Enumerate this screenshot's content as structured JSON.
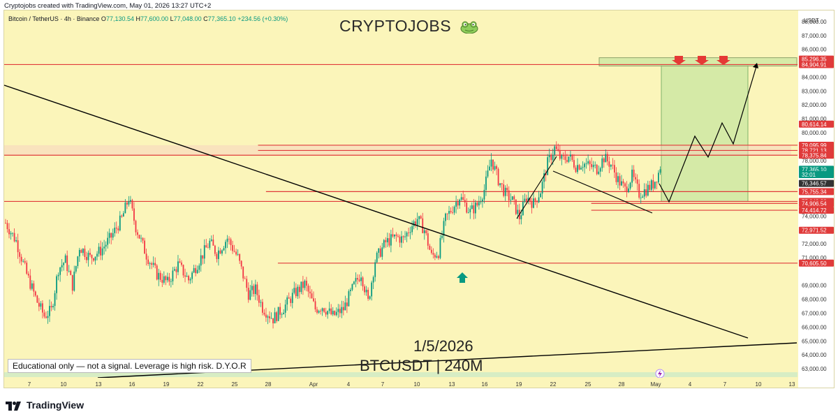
{
  "attribution": "Cryptojobs created with TradingView.com, May 01, 2026 13:27 UTC+2",
  "legend": {
    "symbol": "Bitcoin / TetherUS · 4h · Binance",
    "o_label": "O",
    "o": "77,130.54",
    "h_label": "H",
    "h": "77,600.00",
    "l_label": "L",
    "l": "77,048.00",
    "c_label": "C",
    "c": "77,365.10",
    "change": "+234.56 (+0.30%)"
  },
  "watermark": "CRYPTOJOBS",
  "disclaimer": "Educational only — not a signal. Leverage is high risk. D.Y.O.R",
  "date_note": "1/5/2026",
  "symbol_note": "BTCUSDT | 240M",
  "brand": "TradingView",
  "currency": "USDT",
  "colors": {
    "background": "#fbf5ba",
    "up": "#089981",
    "down": "#f23645",
    "level": "#e03a3a",
    "zone": "#c8e6a0",
    "trendline": "#000000",
    "current": "#089981"
  },
  "icons": [
    "frog-icon",
    "arrow-down-icon",
    "arrow-up-icon",
    "lightning-icon",
    "tradingview-logo-icon"
  ],
  "chart_data": {
    "type": "candlestick",
    "interval": "4h",
    "ylim": [
      62800,
      88800
    ],
    "y_ticks": [
      "88,000.00",
      "87,000.00",
      "86,000.00",
      "84,000.00",
      "83,000.00",
      "82,000.00",
      "81,000.00",
      "80,000.00",
      "78,000.00",
      "77,000.00",
      "74,000.00",
      "73,000.00",
      "72,000.00",
      "71,000.00",
      "69,000.00",
      "68,000.00",
      "67,000.00",
      "66,000.00",
      "65,000.00",
      "64,000.00",
      "63,000.00"
    ],
    "y_tick_values": [
      88000,
      87000,
      86000,
      84000,
      83000,
      82000,
      81000,
      80000,
      78000,
      77000,
      74000,
      73000,
      72000,
      71000,
      69000,
      68000,
      67000,
      66000,
      65000,
      64000,
      63000
    ],
    "x_ticks": [
      "7",
      "10",
      "13",
      "16",
      "19",
      "22",
      "25",
      "28",
      "Apr",
      "4",
      "7",
      "10",
      "13",
      "16",
      "19",
      "22",
      "25",
      "28",
      "May",
      "4",
      "7",
      "10",
      "13"
    ],
    "price_labels": [
      {
        "text": "85,296.35",
        "value": 85296.35,
        "kind": "level"
      },
      {
        "text": "84,904.91",
        "value": 84904.91,
        "kind": "level"
      },
      {
        "text": "80,614.14",
        "value": 80614.14,
        "kind": "level"
      },
      {
        "text": "79,095.99",
        "value": 79095.99,
        "kind": "level"
      },
      {
        "text": "78,721.13",
        "value": 78721.13,
        "kind": "level"
      },
      {
        "text": "78,375.84",
        "value": 78375.84,
        "kind": "level"
      },
      {
        "text": "77,365.10",
        "value": 77365.1,
        "kind": "current"
      },
      {
        "text": "32:01",
        "value": 76980,
        "kind": "timer"
      },
      {
        "text": "76,346.57",
        "value": 76346.57,
        "kind": "dark"
      },
      {
        "text": "75,755.34",
        "value": 75755.34,
        "kind": "level"
      },
      {
        "text": "75,049.82",
        "value": 75049.82,
        "kind": "level"
      },
      {
        "text": "74,906.54",
        "value": 74906.54,
        "kind": "level"
      },
      {
        "text": "74,414.72",
        "value": 74414.72,
        "kind": "level"
      },
      {
        "text": "72,971.52",
        "value": 72971.52,
        "kind": "level"
      },
      {
        "text": "70,605.50",
        "value": 70605.5,
        "kind": "level"
      }
    ],
    "levels": [
      {
        "value": 84904.91,
        "x_start": 0.0
      },
      {
        "value": 79095.99,
        "x_start": 0.32
      },
      {
        "value": 78721.13,
        "x_start": 0.32
      },
      {
        "value": 78375.84,
        "x_start": 0.0
      },
      {
        "value": 75755.34,
        "x_start": 0.33
      },
      {
        "value": 75049.82,
        "x_start": 0.0
      },
      {
        "value": 74906.54,
        "x_start": 0.74
      },
      {
        "value": 74414.72,
        "x_start": 0.74
      },
      {
        "value": 70605.5,
        "x_start": 0.345
      }
    ],
    "target_zone": {
      "top": 84904.91,
      "bottom": 75049.82
    },
    "anchors": [
      {
        "i": 0,
        "v": 73500
      },
      {
        "i": 6,
        "v": 72200
      },
      {
        "i": 12,
        "v": 69800
      },
      {
        "i": 18,
        "v": 67800
      },
      {
        "i": 22,
        "v": 66800
      },
      {
        "i": 26,
        "v": 67200
      },
      {
        "i": 30,
        "v": 70200
      },
      {
        "i": 34,
        "v": 70800
      },
      {
        "i": 38,
        "v": 69000
      },
      {
        "i": 42,
        "v": 71800
      },
      {
        "i": 48,
        "v": 71000
      },
      {
        "i": 54,
        "v": 71500
      },
      {
        "i": 60,
        "v": 72500
      },
      {
        "i": 66,
        "v": 73800
      },
      {
        "i": 70,
        "v": 75300
      },
      {
        "i": 74,
        "v": 73200
      },
      {
        "i": 80,
        "v": 71200
      },
      {
        "i": 86,
        "v": 69800
      },
      {
        "i": 92,
        "v": 69200
      },
      {
        "i": 98,
        "v": 70500
      },
      {
        "i": 104,
        "v": 69400
      },
      {
        "i": 110,
        "v": 70800
      },
      {
        "i": 116,
        "v": 72100
      },
      {
        "i": 120,
        "v": 71300
      },
      {
        "i": 126,
        "v": 72400
      },
      {
        "i": 132,
        "v": 71000
      },
      {
        "i": 138,
        "v": 68400
      },
      {
        "i": 142,
        "v": 68700
      },
      {
        "i": 146,
        "v": 67400
      },
      {
        "i": 152,
        "v": 66600
      },
      {
        "i": 158,
        "v": 67400
      },
      {
        "i": 164,
        "v": 68400
      },
      {
        "i": 170,
        "v": 69100
      },
      {
        "i": 176,
        "v": 67300
      },
      {
        "i": 180,
        "v": 67500
      },
      {
        "i": 186,
        "v": 66800
      },
      {
        "i": 192,
        "v": 67300
      },
      {
        "i": 198,
        "v": 69000
      },
      {
        "i": 202,
        "v": 69900
      },
      {
        "i": 206,
        "v": 67800
      },
      {
        "i": 210,
        "v": 70800
      },
      {
        "i": 216,
        "v": 72100
      },
      {
        "i": 222,
        "v": 72500
      },
      {
        "i": 226,
        "v": 72300
      },
      {
        "i": 230,
        "v": 73200
      },
      {
        "i": 234,
        "v": 73800
      },
      {
        "i": 238,
        "v": 73000
      },
      {
        "i": 242,
        "v": 71100
      },
      {
        "i": 246,
        "v": 71400
      },
      {
        "i": 250,
        "v": 73800
      },
      {
        "i": 254,
        "v": 74600
      },
      {
        "i": 258,
        "v": 75400
      },
      {
        "i": 264,
        "v": 74300
      },
      {
        "i": 268,
        "v": 74800
      },
      {
        "i": 272,
        "v": 75900
      },
      {
        "i": 276,
        "v": 78100
      },
      {
        "i": 280,
        "v": 76600
      },
      {
        "i": 284,
        "v": 75600
      },
      {
        "i": 288,
        "v": 75100
      },
      {
        "i": 292,
        "v": 73900
      },
      {
        "i": 296,
        "v": 75400
      },
      {
        "i": 300,
        "v": 74900
      },
      {
        "i": 304,
        "v": 75800
      },
      {
        "i": 308,
        "v": 77800
      },
      {
        "i": 312,
        "v": 78900
      },
      {
        "i": 316,
        "v": 78000
      },
      {
        "i": 320,
        "v": 78300
      },
      {
        "i": 324,
        "v": 77600
      },
      {
        "i": 328,
        "v": 77800
      },
      {
        "i": 332,
        "v": 77600
      },
      {
        "i": 336,
        "v": 77400
      },
      {
        "i": 340,
        "v": 78200
      },
      {
        "i": 344,
        "v": 77700
      },
      {
        "i": 348,
        "v": 76600
      },
      {
        "i": 352,
        "v": 75900
      },
      {
        "i": 356,
        "v": 76900
      },
      {
        "i": 360,
        "v": 75600
      },
      {
        "i": 364,
        "v": 75900
      },
      {
        "i": 368,
        "v": 76300
      },
      {
        "i": 372,
        "v": 77365
      }
    ],
    "candle_count": 373
  }
}
